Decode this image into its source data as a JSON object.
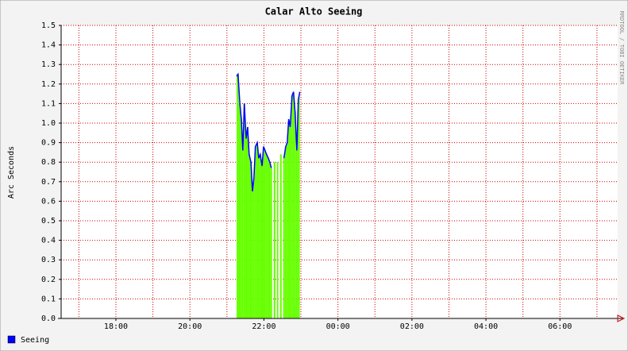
{
  "chart_data": {
    "type": "area-line",
    "title": "Calar Alto Seeing",
    "y_label": "Arc Seconds",
    "watermark": "RRDTOOL / TOBI OETIKER",
    "x": [
      21.26,
      21.3,
      21.35,
      21.39,
      21.43,
      21.47,
      21.52,
      21.56,
      21.6,
      21.65,
      21.69,
      21.73,
      21.77,
      21.82,
      21.86,
      21.9,
      21.95,
      21.99,
      22.03,
      22.07,
      22.12,
      22.16,
      22.2,
      22.24,
      22.29,
      22.33,
      22.37,
      22.41,
      22.46,
      22.5,
      22.54,
      22.59,
      22.63,
      22.67,
      22.71,
      22.76,
      22.8,
      22.84,
      22.89,
      22.93,
      22.97
    ],
    "series": [
      {
        "name": "Seeing",
        "color": "#0000ff",
        "area_color": "#66ff00",
        "values": [
          1.24,
          1.25,
          1.1,
          1.02,
          0.86,
          1.1,
          0.92,
          0.98,
          0.84,
          0.8,
          0.65,
          0.72,
          0.88,
          0.9,
          0.82,
          0.84,
          0.78,
          0.88,
          0.86,
          0.84,
          0.82,
          0.8,
          0.77,
          null,
          0.8,
          null,
          0.8,
          null,
          0.84,
          null,
          0.82,
          0.88,
          0.9,
          1.02,
          0.98,
          1.14,
          1.16,
          1.06,
          0.86,
          1.12,
          1.16
        ]
      }
    ],
    "xlim": [
      16.52,
      31.56
    ],
    "xticks": [
      {
        "value": 18,
        "label": "18:00"
      },
      {
        "value": 20,
        "label": "20:00"
      },
      {
        "value": 22,
        "label": "22:00"
      },
      {
        "value": 24,
        "label": "00:00"
      },
      {
        "value": 26,
        "label": "02:00"
      },
      {
        "value": 28,
        "label": "04:00"
      },
      {
        "value": 30,
        "label": "06:00"
      }
    ],
    "x_minor_ticks": [
      17,
      19,
      21,
      23,
      25,
      27,
      29,
      31
    ],
    "ylim": [
      0,
      1.5
    ],
    "yticks": [
      {
        "value": 0,
        "label": "0.0"
      },
      0.1,
      0.2,
      0.3,
      0.4,
      0.5,
      0.6,
      0.7,
      0.8,
      0.9,
      {
        "value": 1,
        "label": "1.0"
      },
      1.1,
      1.2,
      1.3,
      1.4,
      1.5
    ],
    "grid": true,
    "grid_color": "#cc0000"
  }
}
